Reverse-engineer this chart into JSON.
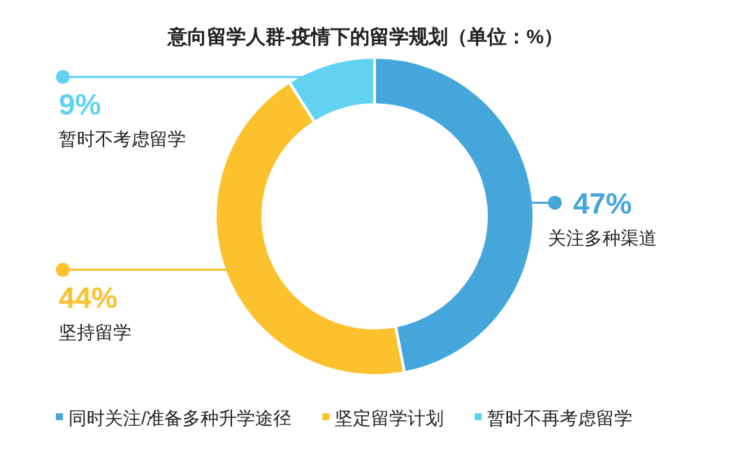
{
  "chart_data": {
    "type": "donut",
    "title": "意向留学人群-疫情下的留学规划（单位：%）",
    "categories": [
      "同时关注/准备多种升学途径",
      "坚定留学计划",
      "暂时不再考虑留学"
    ],
    "values": [
      47,
      44,
      9
    ],
    "value_labels": [
      "47%",
      "44%",
      "9%"
    ],
    "colors": [
      "#45a6dc",
      "#fbc22e",
      "#62d2f3"
    ],
    "annotations": [
      "关注多种渠道",
      "坚持留学",
      "暂时不考虑留学"
    ],
    "legend": "bottom"
  }
}
